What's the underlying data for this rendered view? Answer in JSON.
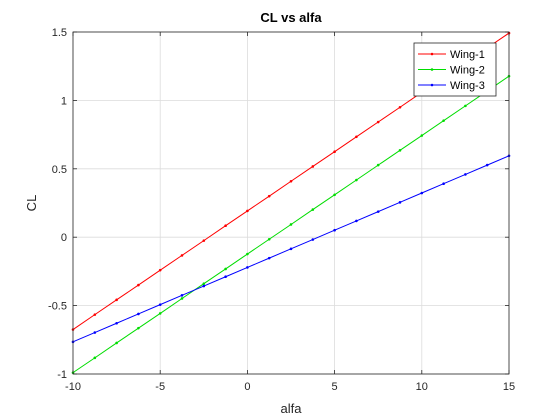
{
  "chart_data": {
    "type": "line",
    "title": "CL vs alfa",
    "xlabel": "alfa",
    "ylabel": "CL",
    "xlim": [
      -10,
      15
    ],
    "ylim": [
      -1,
      1.5
    ],
    "xticks": [
      -10,
      -5,
      0,
      5,
      10,
      15
    ],
    "yticks": [
      -1,
      -0.5,
      0,
      0.5,
      1,
      1.5
    ],
    "xtick_labels": [
      "-10",
      "-5",
      "0",
      "5",
      "10",
      "15"
    ],
    "ytick_labels": [
      "-1",
      "-0.5",
      "0",
      "0.5",
      "1",
      "1.5"
    ],
    "grid": true,
    "legend_position": "top-right",
    "x": [
      -10,
      -8.75,
      -7.5,
      -6.25,
      -5,
      -3.75,
      -2.5,
      -1.25,
      0,
      1.25,
      2.5,
      3.75,
      5,
      6.25,
      7.5,
      8.75,
      10,
      11.25,
      12.5,
      13.75,
      15
    ],
    "series": [
      {
        "name": "Wing-1",
        "color": "#ff0000",
        "values": [
          -0.675,
          -0.566,
          -0.458,
          -0.35,
          -0.241,
          -0.133,
          -0.025,
          0.084,
          0.192,
          0.3,
          0.409,
          0.517,
          0.625,
          0.734,
          0.842,
          0.95,
          1.059,
          1.167,
          1.275,
          1.384,
          1.492
        ]
      },
      {
        "name": "Wing-2",
        "color": "#00dd00",
        "values": [
          -0.99,
          -0.882,
          -0.773,
          -0.665,
          -0.557,
          -0.448,
          -0.34,
          -0.232,
          -0.123,
          -0.015,
          0.093,
          0.202,
          0.31,
          0.418,
          0.527,
          0.635,
          0.743,
          0.852,
          0.96,
          1.068,
          1.177
        ]
      },
      {
        "name": "Wing-3",
        "color": "#0000ff",
        "values": [
          -0.765,
          -0.697,
          -0.629,
          -0.561,
          -0.493,
          -0.425,
          -0.357,
          -0.289,
          -0.221,
          -0.153,
          -0.085,
          -0.017,
          0.051,
          0.119,
          0.187,
          0.255,
          0.323,
          0.391,
          0.459,
          0.527,
          0.595
        ]
      }
    ]
  }
}
